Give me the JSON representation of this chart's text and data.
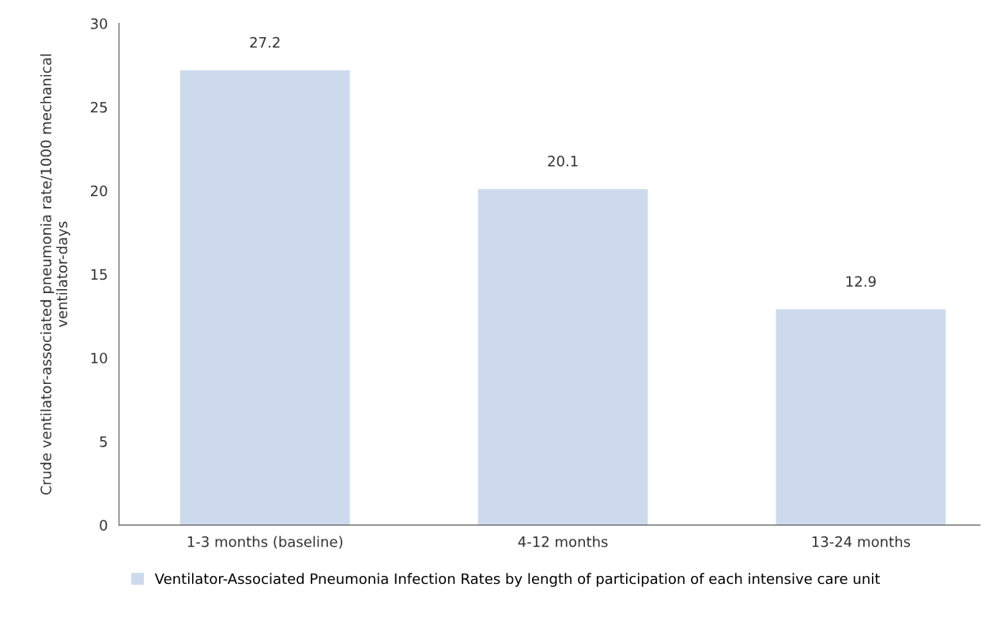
{
  "chart_data": {
    "type": "bar",
    "ylabel": "Crude ventilator-associated pneumonia rate/1000 mechanical ventilator-days",
    "categories": [
      "1-3 months (baseline)",
      "4-12 months",
      "13-24 months"
    ],
    "series": [
      {
        "name": "Ventilator-Associated Pneumonia Infection Rates by length of participation of each intensive care unit",
        "color": "#cddaee",
        "values": [
          27.2,
          20.1,
          12.9
        ]
      }
    ],
    "ylim": [
      0,
      30
    ],
    "yticks": [
      0,
      5,
      10,
      15,
      20,
      25,
      30
    ],
    "data_labels": true,
    "grid": false,
    "legend": "bottom"
  }
}
